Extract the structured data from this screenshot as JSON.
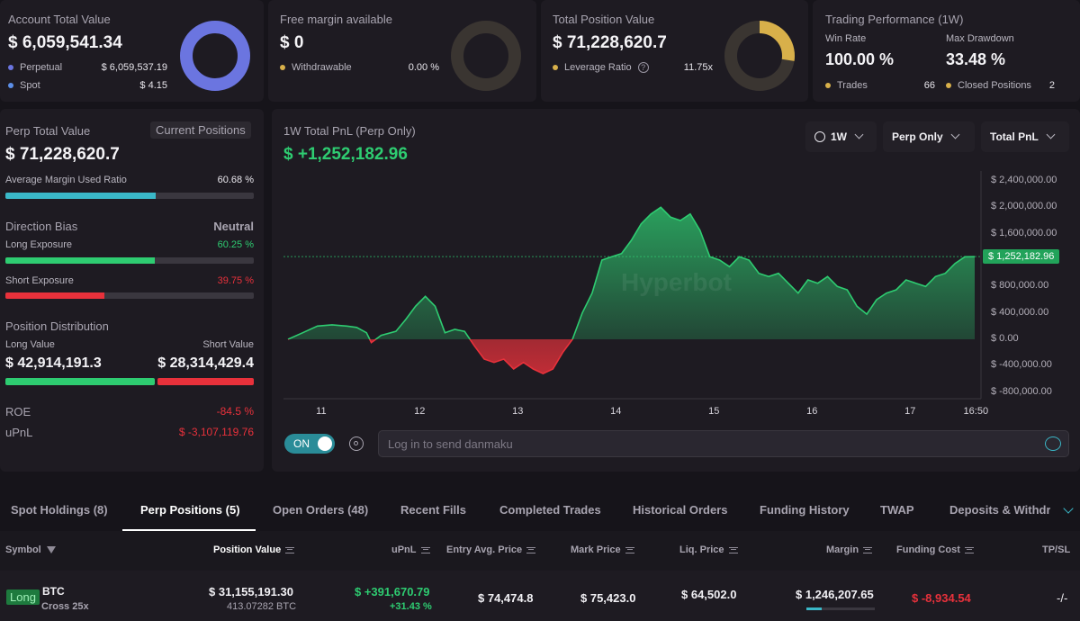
{
  "summary": {
    "account": {
      "label": "Account Total Value",
      "value": "$ 6,059,541.34",
      "rows": [
        {
          "label": "Perpetual",
          "value": "$ 6,059,537.19",
          "color": "#6b75e0"
        },
        {
          "label": "Spot",
          "value": "$ 4.15",
          "color": "#5c8fe8"
        }
      ]
    },
    "margin": {
      "label": "Free margin available",
      "value": "$ 0",
      "row_label": "Withdrawable",
      "row_value": "0.00 %"
    },
    "position": {
      "label": "Total Position Value",
      "value": "$ 71,228,620.7",
      "row_label": "Leverage Ratio",
      "row_value": "11.75x"
    },
    "performance": {
      "label": "Trading Performance (1W)",
      "win_rate_label": "Win Rate",
      "win_rate": "100.00 %",
      "drawdown_label": "Max Drawdown",
      "drawdown": "33.48 %",
      "trades_label": "Trades",
      "trades": "66",
      "closed_label": "Closed Positions",
      "closed": "2"
    }
  },
  "left": {
    "perp_label": "Perp Total Value",
    "current_positions": "Current Positions",
    "perp_value": "$ 71,228,620.7",
    "avg_margin_label": "Average Margin Used Ratio",
    "avg_margin": "60.68 %",
    "avg_margin_fraction": 0.6068,
    "direction_label": "Direction Bias",
    "direction_value": "Neutral",
    "long_label": "Long Exposure",
    "long_value": "60.25 %",
    "long_fraction": 0.6025,
    "short_label": "Short Exposure",
    "short_value": "39.75 %",
    "short_fraction": 0.3975,
    "dist_label": "Position Distribution",
    "long_val_label": "Long Value",
    "short_val_label": "Short Value",
    "long_val": "$ 42,914,191.3",
    "short_val": "$ 28,314,429.4",
    "roe_label": "ROE",
    "roe": "-84.5 %",
    "upnl_label": "uPnL",
    "upnl": "$ -3,107,119.76"
  },
  "chart_panel": {
    "title": "1W Total PnL (Perp Only)",
    "value": "$ +1,252,182.96",
    "dropdowns": [
      "1W",
      "Perp Only",
      "Total PnL"
    ],
    "current_label": "$ 1,252,182.96",
    "watermark": "Hyperbot",
    "toggle": "ON",
    "danmaku_placeholder": "Log in to send danmaku"
  },
  "chart_data": {
    "type": "area",
    "x_ticks": [
      "11",
      "12",
      "13",
      "14",
      "15",
      "16",
      "17",
      "16:50"
    ],
    "y_ticks": [
      "$ 2,400,000.00",
      "$ 2,000,000.00",
      "$ 1,600,000.00",
      "$ 1,252,182.96",
      "$ 800,000.00",
      "$ 400,000.00",
      "$ 0.00",
      "$ -400,000.00",
      "$ -800,000.00"
    ],
    "ylim": [
      -900000,
      2600000
    ],
    "current": 1252182.96,
    "x": [
      10.65,
      10.8,
      10.95,
      11.1,
      11.25,
      11.35,
      11.45,
      11.5,
      11.6,
      11.75,
      11.85,
      11.95,
      12.05,
      12.15,
      12.25,
      12.35,
      12.45,
      12.55,
      12.65,
      12.75,
      12.85,
      12.95,
      13.05,
      13.15,
      13.25,
      13.35,
      13.45,
      13.55,
      13.65,
      13.75,
      13.85,
      13.95,
      14.05,
      14.15,
      14.25,
      14.35,
      14.45,
      14.55,
      14.65,
      14.75,
      14.85,
      14.95,
      15.05,
      15.15,
      15.25,
      15.35,
      15.45,
      15.55,
      15.65,
      15.75,
      15.85,
      15.95,
      16.05,
      16.15,
      16.25,
      16.35,
      16.45,
      16.55,
      16.65,
      16.75,
      16.85,
      16.95,
      17.05,
      17.15,
      17.25,
      17.35,
      17.45,
      17.55,
      17.65
    ],
    "y": [
      0,
      100000,
      200000,
      220000,
      200000,
      180000,
      100000,
      -50000,
      60000,
      120000,
      300000,
      500000,
      650000,
      500000,
      100000,
      150000,
      120000,
      -100000,
      -300000,
      -350000,
      -300000,
      -450000,
      -350000,
      -450000,
      -520000,
      -450000,
      -200000,
      0,
      400000,
      700000,
      1200000,
      1250000,
      1300000,
      1500000,
      1750000,
      1900000,
      2000000,
      1850000,
      1800000,
      1900000,
      1650000,
      1250000,
      1200000,
      1100000,
      1250000,
      1200000,
      1000000,
      950000,
      1000000,
      850000,
      700000,
      900000,
      850000,
      950000,
      800000,
      750000,
      500000,
      380000,
      600000,
      700000,
      750000,
      900000,
      850000,
      800000,
      950000,
      1000000,
      1150000,
      1250000,
      1252182.96
    ]
  },
  "tabs": {
    "items": [
      "Spot Holdings (8)",
      "Perp Positions (5)",
      "Open Orders (48)",
      "Recent Fills",
      "Completed Trades",
      "Historical Orders",
      "Funding History",
      "TWAP",
      "Deposits & Withdra"
    ],
    "active": 1
  },
  "table": {
    "headers": [
      "Symbol",
      "Position Value",
      "uPnL",
      "Entry Avg. Price",
      "Mark Price",
      "Liq. Price",
      "Margin",
      "Funding Cost",
      "TP/SL"
    ],
    "row": {
      "side": "Long",
      "symbol": "BTC",
      "mode": "Cross 25x",
      "position_value": "$ 31,155,191.30",
      "position_qty": "413.07282 BTC",
      "upnl": "$ +391,670.79",
      "upnl_pct": "+31.43 %",
      "entry": "$ 74,474.8",
      "mark": "$ 75,423.0",
      "liq": "$ 64,502.0",
      "margin": "$ 1,246,207.65",
      "funding": "$ -8,934.54",
      "tpsl": "-/-"
    }
  },
  "colors": {
    "green": "#2ecc71",
    "red": "#e8313b",
    "accent_blue": "#6b75e0",
    "gold": "#d8b04a",
    "teal": "#3ab8c8"
  }
}
